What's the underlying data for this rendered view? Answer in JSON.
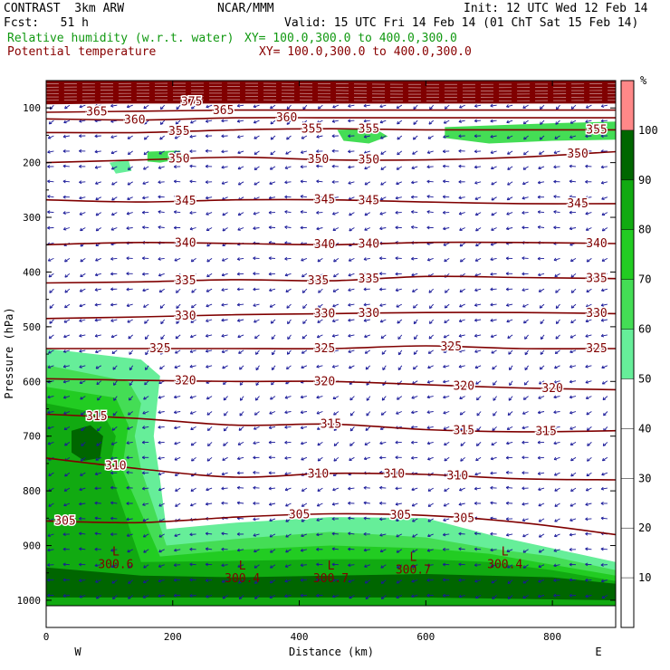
{
  "header": {
    "model": "CONTRAST  3km ARW",
    "center": "NCAR/MMM",
    "init": "Init: 12 UTC Wed 12 Feb 14",
    "fcst": "Fcst:   51 h",
    "valid": "Valid: 15 UTC Fri 14 Feb 14 (01 ChT Sat 15 Feb 14)",
    "field1": "Relative humidity (w.r.t. water)",
    "field1_xy": "XY= 100.0,300.0 to 400.0,300.0",
    "field2": "Potential temperature",
    "field2_xy": "XY= 100.0,300.0 to 400.0,300.0"
  },
  "colors": {
    "theta": "#800000",
    "wind": "#1a1a99",
    "rh_50": "#66ee99",
    "rh_60": "#44dd55",
    "rh_70": "#22cc22",
    "rh_80": "#11aa11",
    "rh_90": "#006600",
    "rh_100": "#ff8888"
  },
  "chart_data": {
    "type": "contour",
    "xlabel": "Distance (km)",
    "ylabel": "Pressure (hPa)",
    "xlim": [
      0,
      900
    ],
    "ylim": [
      1010,
      50
    ],
    "x_ticks": [
      "0",
      "200",
      "400",
      "600",
      "800"
    ],
    "y_ticks": [
      "100",
      "200",
      "300",
      "400",
      "500",
      "600",
      "700",
      "800",
      "900",
      "1000"
    ],
    "x_end_labels": {
      "left": "W",
      "right": "E"
    },
    "colorbar": {
      "unit": "%",
      "levels": [
        "10",
        "20",
        "30",
        "40",
        "50",
        "60",
        "70",
        "80",
        "90",
        "100"
      ]
    },
    "theta_contours": [
      {
        "label": "305",
        "points": [
          [
            0,
            855
          ],
          [
            150,
            858
          ],
          [
            300,
            848
          ],
          [
            450,
            842
          ],
          [
            600,
            845
          ],
          [
            750,
            858
          ],
          [
            900,
            880
          ]
        ],
        "label_x": [
          30,
          400,
          560,
          660
        ]
      },
      {
        "label": "310",
        "points": [
          [
            0,
            740
          ],
          [
            150,
            760
          ],
          [
            300,
            775
          ],
          [
            450,
            768
          ],
          [
            600,
            770
          ],
          [
            750,
            778
          ],
          [
            900,
            780
          ]
        ],
        "label_x": [
          110,
          430,
          550,
          650
        ]
      },
      {
        "label": "315",
        "points": [
          [
            0,
            660
          ],
          [
            150,
            668
          ],
          [
            300,
            680
          ],
          [
            450,
            678
          ],
          [
            600,
            688
          ],
          [
            750,
            692
          ],
          [
            900,
            690
          ]
        ],
        "label_x": [
          80,
          450,
          660,
          790
        ]
      },
      {
        "label": "320",
        "points": [
          [
            0,
            595
          ],
          [
            150,
            598
          ],
          [
            300,
            600
          ],
          [
            450,
            600
          ],
          [
            600,
            606
          ],
          [
            750,
            612
          ],
          [
            900,
            615
          ]
        ],
        "label_x": [
          220,
          440,
          660,
          800
        ]
      },
      {
        "label": "325",
        "points": [
          [
            0,
            540
          ],
          [
            150,
            540
          ],
          [
            300,
            540
          ],
          [
            450,
            540
          ],
          [
            600,
            535
          ],
          [
            750,
            540
          ],
          [
            900,
            540
          ]
        ],
        "label_x": [
          180,
          440,
          640,
          870
        ]
      },
      {
        "label": "330",
        "points": [
          [
            0,
            485
          ],
          [
            150,
            482
          ],
          [
            300,
            478
          ],
          [
            450,
            476
          ],
          [
            600,
            474
          ],
          [
            750,
            474
          ],
          [
            900,
            476
          ]
        ],
        "label_x": [
          220,
          440,
          510,
          870
        ]
      },
      {
        "label": "335",
        "points": [
          [
            0,
            420
          ],
          [
            150,
            418
          ],
          [
            300,
            414
          ],
          [
            450,
            416
          ],
          [
            600,
            408
          ],
          [
            750,
            410
          ],
          [
            900,
            412
          ]
        ],
        "label_x": [
          220,
          430,
          510,
          870
        ]
      },
      {
        "label": "340",
        "points": [
          [
            0,
            350
          ],
          [
            150,
            346
          ],
          [
            300,
            348
          ],
          [
            450,
            350
          ],
          [
            600,
            346
          ],
          [
            750,
            346
          ],
          [
            900,
            348
          ]
        ],
        "label_x": [
          220,
          440,
          510,
          870
        ]
      },
      {
        "label": "345",
        "points": [
          [
            0,
            268
          ],
          [
            150,
            272
          ],
          [
            300,
            268
          ],
          [
            450,
            268
          ],
          [
            600,
            272
          ],
          [
            750,
            275
          ],
          [
            900,
            275
          ]
        ],
        "label_x": [
          220,
          440,
          510,
          840
        ]
      },
      {
        "label": "350",
        "points": [
          [
            0,
            200
          ],
          [
            150,
            195
          ],
          [
            300,
            190
          ],
          [
            450,
            195
          ],
          [
            600,
            195
          ],
          [
            750,
            190
          ],
          [
            900,
            180
          ]
        ],
        "label_x": [
          210,
          430,
          510,
          840
        ]
      },
      {
        "label": "355",
        "points": [
          [
            0,
            145
          ],
          [
            150,
            145
          ],
          [
            300,
            140
          ],
          [
            450,
            138
          ],
          [
            600,
            140
          ],
          [
            750,
            140
          ],
          [
            900,
            140
          ]
        ],
        "label_x": [
          210,
          420,
          510,
          870
        ]
      },
      {
        "label": "360",
        "points": [
          [
            0,
            120
          ],
          [
            150,
            122
          ],
          [
            300,
            118
          ],
          [
            450,
            118
          ],
          [
            600,
            118
          ],
          [
            750,
            118
          ],
          [
            900,
            118
          ]
        ],
        "label_x": [
          140,
          380
        ]
      },
      {
        "label": "365",
        "points": [
          [
            0,
            108
          ],
          [
            150,
            106
          ],
          [
            300,
            104
          ],
          [
            450,
            104
          ],
          [
            600,
            104
          ],
          [
            750,
            104
          ],
          [
            900,
            104
          ]
        ],
        "label_x": [
          80,
          280
        ]
      },
      {
        "label": "375",
        "points": [
          [
            0,
            92
          ],
          [
            150,
            90
          ],
          [
            300,
            88
          ],
          [
            450,
            90
          ],
          [
            600,
            90
          ],
          [
            750,
            90
          ],
          [
            900,
            90
          ]
        ],
        "label_x": [
          230
        ]
      }
    ],
    "rh_regions": [
      {
        "level": "rh_50",
        "points": [
          [
            0,
            540
          ],
          [
            150,
            560
          ],
          [
            180,
            590
          ],
          [
            170,
            700
          ],
          [
            180,
            780
          ],
          [
            190,
            870
          ],
          [
            300,
            858
          ],
          [
            450,
            848
          ],
          [
            600,
            850
          ],
          [
            700,
            880
          ],
          [
            800,
            905
          ],
          [
            900,
            930
          ],
          [
            900,
            1010
          ],
          [
            0,
            1010
          ]
        ]
      },
      {
        "level": "rh_60",
        "points": [
          [
            0,
            570
          ],
          [
            130,
            600
          ],
          [
            150,
            640
          ],
          [
            140,
            700
          ],
          [
            150,
            760
          ],
          [
            190,
            900
          ],
          [
            300,
            888
          ],
          [
            450,
            875
          ],
          [
            600,
            885
          ],
          [
            700,
            905
          ],
          [
            800,
            920
          ],
          [
            900,
            945
          ],
          [
            900,
            1010
          ],
          [
            0,
            1010
          ]
        ]
      },
      {
        "level": "rh_70",
        "points": [
          [
            0,
            610
          ],
          [
            110,
            630
          ],
          [
            130,
            680
          ],
          [
            120,
            760
          ],
          [
            180,
            920
          ],
          [
            300,
            908
          ],
          [
            450,
            900
          ],
          [
            600,
            905
          ],
          [
            700,
            915
          ],
          [
            800,
            935
          ],
          [
            900,
            955
          ],
          [
            900,
            1010
          ],
          [
            0,
            1010
          ]
        ]
      },
      {
        "level": "rh_80",
        "points": [
          [
            0,
            640
          ],
          [
            90,
            660
          ],
          [
            110,
            700
          ],
          [
            100,
            760
          ],
          [
            150,
            930
          ],
          [
            300,
            928
          ],
          [
            450,
            925
          ],
          [
            600,
            925
          ],
          [
            700,
            930
          ],
          [
            800,
            945
          ],
          [
            900,
            965
          ],
          [
            900,
            1010
          ],
          [
            0,
            1010
          ]
        ]
      },
      {
        "level": "rh_90",
        "points": [
          [
            0,
            940
          ],
          [
            150,
            955
          ],
          [
            300,
            958
          ],
          [
            450,
            955
          ],
          [
            600,
            952
          ],
          [
            800,
            958
          ],
          [
            900,
            970
          ],
          [
            900,
            1000
          ],
          [
            600,
            995
          ],
          [
            300,
            995
          ],
          [
            0,
            995
          ]
        ]
      },
      {
        "level": "rh_90",
        "points": [
          [
            40,
            690
          ],
          [
            70,
            680
          ],
          [
            90,
            700
          ],
          [
            85,
            740
          ],
          [
            60,
            745
          ],
          [
            40,
            730
          ]
        ]
      },
      {
        "level": "rh_60",
        "points": [
          [
            460,
            140
          ],
          [
            520,
            138
          ],
          [
            540,
            152
          ],
          [
            510,
            165
          ],
          [
            470,
            160
          ]
        ]
      },
      {
        "level": "rh_60",
        "points": [
          [
            630,
            135
          ],
          [
            800,
            128
          ],
          [
            900,
            125
          ],
          [
            900,
            158
          ],
          [
            800,
            160
          ],
          [
            700,
            165
          ],
          [
            630,
            155
          ]
        ]
      },
      {
        "level": "rh_60",
        "points": [
          [
            160,
            180
          ],
          [
            210,
            178
          ],
          [
            220,
            192
          ],
          [
            180,
            200
          ],
          [
            160,
            198
          ]
        ]
      },
      {
        "level": "rh_50",
        "points": [
          [
            100,
            200
          ],
          [
            130,
            195
          ],
          [
            135,
            215
          ],
          [
            110,
            220
          ]
        ]
      }
    ],
    "lows": [
      {
        "label": "300.6",
        "x": 110,
        "p": 925
      },
      {
        "label": "300.4",
        "x": 310,
        "p": 950
      },
      {
        "label": "300.7",
        "x": 450,
        "p": 950
      },
      {
        "label": "300.7",
        "x": 580,
        "p": 935
      },
      {
        "label": "300.4",
        "x": 725,
        "p": 925
      }
    ],
    "stratosphere_top": {
      "p_top": 50,
      "p_bottom": 92
    }
  }
}
